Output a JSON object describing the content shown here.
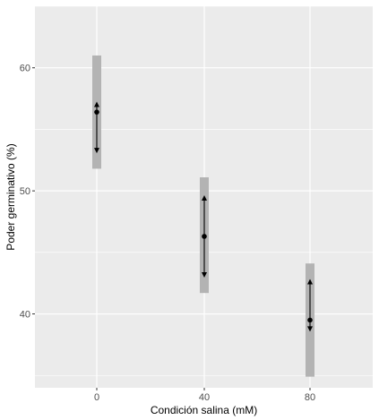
{
  "chart_data": {
    "type": "scatter",
    "xlabel": "Condición salina (mM)",
    "ylabel": "Poder germinativo (%)",
    "categories": [
      "0",
      "40",
      "80"
    ],
    "ylim": [
      34,
      65
    ],
    "yticks": [
      40,
      50,
      60
    ],
    "grid": true,
    "panel_background": "#ebebeb",
    "grid_color": "#ffffff",
    "range_band_color": "#b3b3b3",
    "point_color": "#000000",
    "series": [
      {
        "points": [
          {
            "x": "0",
            "mean": 56.4,
            "band_low": 51.8,
            "band_high": 61.0,
            "arrow_low": 53.2,
            "arrow_high": 57.1
          },
          {
            "x": "40",
            "mean": 46.3,
            "band_low": 41.7,
            "band_high": 51.1,
            "arrow_low": 43.1,
            "arrow_high": 49.5
          },
          {
            "x": "80",
            "mean": 39.5,
            "band_low": 34.9,
            "band_high": 44.1,
            "arrow_low": 38.7,
            "arrow_high": 42.7
          }
        ]
      }
    ]
  }
}
